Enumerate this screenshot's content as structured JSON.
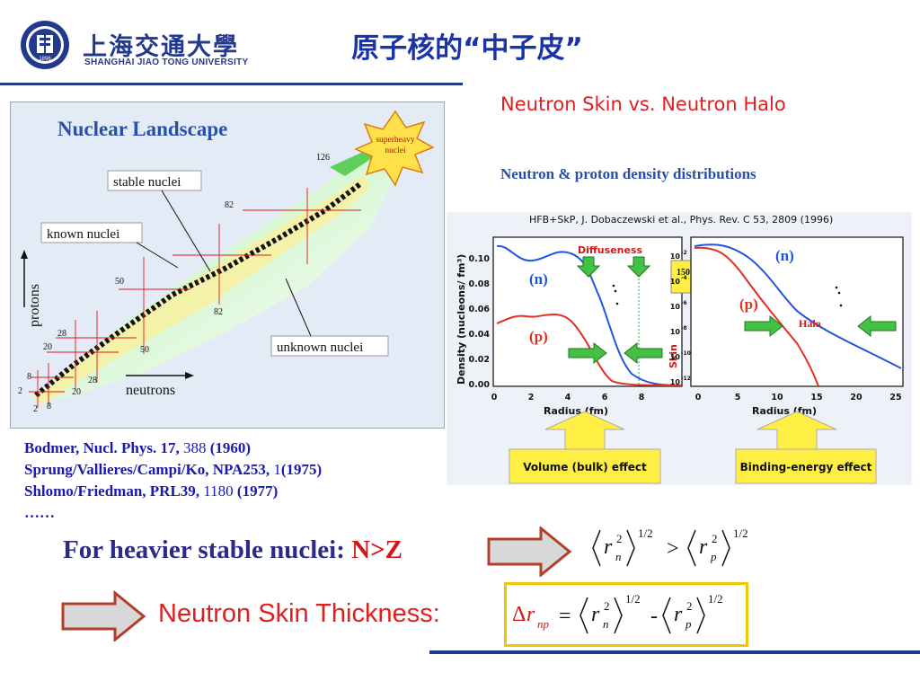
{
  "header": {
    "logo_cn": "上海交通大學",
    "logo_en": "SHANGHAI JIAO TONG UNIVERSITY",
    "logo_year": "1896",
    "title": "原子核的“中子皮”"
  },
  "landscape": {
    "title": "Nuclear Landscape",
    "burst": [
      "superheavy",
      "nuclei"
    ],
    "stable_label": "stable nuclei",
    "known_label": "known nuclei",
    "unknown_label": "unknown nuclei",
    "protons_axis": "protons",
    "neutrons_axis": "neutrons",
    "magic": {
      "n126": "126",
      "n82a": "82",
      "n82b": "82",
      "n50a": "50",
      "n50b": "50",
      "n28a": "28",
      "n28b": "28",
      "n20a": "20",
      "n20b": "20",
      "n8a": "8",
      "n8b": "8",
      "n2a": "2",
      "n2b": "2"
    }
  },
  "references": {
    "r1_a": "Bodmer, Nucl. Phys. 17,",
    "r1_b": "388",
    "r1_c": "(1960)",
    "r2_a": "Sprung/Vallieres/Campi/Ko, NPA253,",
    "r2_b": "1",
    "r2_c": "(1975)",
    "r3_a": "Shlomo/Friedman, PRL39,",
    "r3_b": "1180",
    "r3_c": "(1977)",
    "more": "……"
  },
  "right_title": "Neutron Skin vs.  Neutron Halo",
  "density": {
    "title": "Neutron & proton density distributions",
    "citation": "HFB+SkP, J. Dobaczewski et al., Phys. Rev. C 53, 2809 (1996)",
    "ylabel": "Density (nucleons/ fm³)",
    "xlabel": "Radius (fm)",
    "left_yticks": [
      "0.10",
      "0.08",
      "0.06",
      "0.04",
      "0.02",
      "0.00"
    ],
    "left_xticks": [
      "0",
      "2",
      "4",
      "6",
      "8"
    ],
    "right_yticks": [
      "10",
      "10",
      "10",
      "10",
      "10",
      "10"
    ],
    "right_yexp": [
      "-2",
      "-4",
      "-6",
      "-8",
      "-10",
      "-12"
    ],
    "right_xticks": [
      "0",
      "5",
      "10",
      "15",
      "20",
      "25"
    ],
    "diffuseness": "Diffuseness",
    "skin": "Skin",
    "halo": "Halo",
    "n_label": "(n)",
    "p_label": "(p)",
    "nucleus_mass": "150",
    "nucleus_sym": "Sn",
    "volume_effect": "Volume (bulk) effect",
    "binding_effect": "Binding-energy effect",
    "colors": {
      "neutron": "#2255dd",
      "proton": "#e03020"
    }
  },
  "statement": {
    "text": "For heavier stable nuclei: ",
    "nz": "N>Z"
  },
  "thickness": {
    "label": "Neutron Skin Thickness:"
  },
  "formula": {
    "r": "r",
    "sq": "2",
    "n": "n",
    "p": "p",
    "half": "1/2",
    "gt": ">",
    "eq": "=",
    "minus": "-",
    "delta": "Δ",
    "np": "np"
  }
}
